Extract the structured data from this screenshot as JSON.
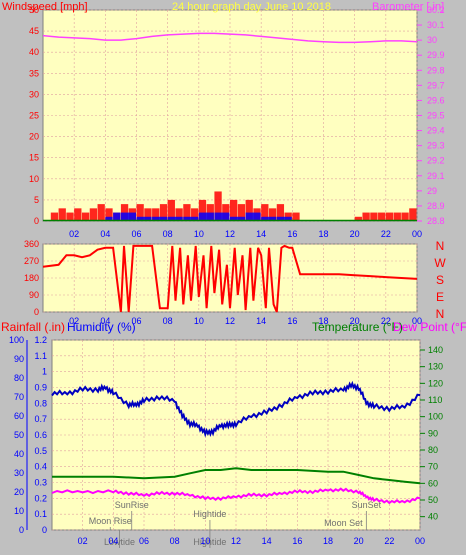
{
  "header": {
    "title": "24 hour graph day   June 10 2018",
    "left_label": "Windspeed [mph]",
    "right_label": "Barometer [.in]"
  },
  "bottom_header": {
    "rain_label": "Rainfall (.in)",
    "humidity_label": "Humidity (%)",
    "temperature_label": "Temperature (°F)",
    "dewpoint_label": "Dew Point (°F)"
  },
  "colors": {
    "background": "#c0c0c0",
    "plot_bg": "#ffffc0",
    "wind": "#ff0000",
    "wind_blue": "#0000ff",
    "wind_green": "#008000",
    "barometer": "#ff40ff",
    "direction": "#ff0000",
    "humidity": "#0000c0",
    "temperature": "#008000",
    "dewpoint": "#ff00ff",
    "axis_left_bottom": "#0000ff",
    "axis_rain": "#ff0000"
  },
  "chart_data": [
    {
      "id": "top",
      "type": "line",
      "x_ticks": [
        "02",
        "04",
        "06",
        "08",
        "10",
        "12",
        "14",
        "16",
        "18",
        "20",
        "22",
        "00"
      ],
      "left_axis": {
        "label": "Windspeed [mph]",
        "ylim": [
          0,
          50
        ],
        "ticks": [
          "0",
          "5",
          "10",
          "15",
          "20",
          "25",
          "30",
          "35",
          "40",
          "45",
          "50"
        ]
      },
      "right_axis": {
        "label": "Barometer [.in]",
        "ylim": [
          28.8,
          30.2
        ],
        "ticks": [
          "28.8",
          "28.9",
          "29",
          "29.1",
          "29.2",
          "29.3",
          "29.4",
          "29.5",
          "29.6",
          "29.7",
          "29.8",
          "29.9",
          "30",
          "30.1",
          "30.2"
        ]
      },
      "series": [
        {
          "name": "Barometer [.in]",
          "axis": "right",
          "x": [
            0,
            1,
            2,
            3,
            4,
            5,
            6,
            7,
            8,
            9,
            10,
            11,
            12,
            13,
            14,
            15,
            16,
            17,
            18,
            19,
            20,
            21,
            22,
            23,
            24
          ],
          "y": [
            30.03,
            30.02,
            30.015,
            30.01,
            30.0,
            30.0,
            30.01,
            30.025,
            30.035,
            30.04,
            30.045,
            30.045,
            30.04,
            30.035,
            30.025,
            30.015,
            30.005,
            29.995,
            29.99,
            29.985,
            29.985,
            29.99,
            29.995,
            29.995,
            29.99
          ]
        },
        {
          "name": "Wind gust",
          "axis": "left",
          "x": [
            0,
            0.5,
            1,
            1.5,
            2,
            2.5,
            3,
            3.5,
            4,
            4.5,
            5,
            5.5,
            6,
            6.5,
            7,
            7.5,
            8,
            8.5,
            9,
            9.5,
            10,
            10.5,
            11,
            11.5,
            12,
            12.5,
            13,
            13.5,
            14,
            14.5,
            15,
            15.5,
            16,
            16.5,
            17,
            17.5,
            18,
            18.5,
            19,
            19.5,
            20,
            20.5,
            21,
            21.5,
            22,
            22.5,
            23,
            23.5,
            24
          ],
          "y": [
            0,
            2,
            3,
            2,
            3,
            2,
            3,
            4,
            3,
            2,
            4,
            3,
            4,
            3,
            3,
            4,
            5,
            3,
            4,
            3,
            5,
            4,
            7,
            4,
            5,
            4,
            5,
            3,
            4,
            3,
            4,
            2,
            2,
            0,
            0,
            0,
            0,
            0,
            0,
            0,
            1,
            2,
            2,
            2,
            2,
            2,
            2,
            3,
            3
          ]
        },
        {
          "name": "Wind speed",
          "axis": "left",
          "x": [
            0,
            1,
            2,
            3,
            4,
            4.5,
            5,
            6,
            7,
            8,
            9,
            10,
            11,
            12,
            13,
            14,
            15,
            16,
            17,
            18,
            19,
            20,
            21,
            22,
            23,
            24
          ],
          "y": [
            0,
            0,
            0,
            0,
            1,
            2,
            2,
            1,
            1,
            1,
            1,
            2,
            2,
            1,
            2,
            1,
            1,
            0,
            0,
            0,
            0,
            0,
            0,
            0,
            0,
            0
          ]
        }
      ]
    },
    {
      "id": "direction",
      "type": "line",
      "x_ticks": [
        "02",
        "04",
        "06",
        "08",
        "10",
        "12",
        "14",
        "16",
        "18",
        "20",
        "22",
        "00"
      ],
      "left_axis": {
        "ylim": [
          0,
          360
        ],
        "ticks": [
          "0",
          "90",
          "180",
          "270",
          "360"
        ]
      },
      "right_axis": {
        "ticks": [
          "N",
          "W",
          "S",
          "E",
          "N"
        ]
      },
      "series": [
        {
          "name": "Wind direction",
          "x": [
            0,
            1,
            1.5,
            2,
            2.5,
            3,
            3.5,
            4,
            4.5,
            5,
            5.2,
            5.5,
            5.8,
            6,
            6.5,
            7,
            7.5,
            8,
            8.3,
            8.5,
            8.8,
            9,
            9.3,
            9.5,
            9.8,
            10,
            10.3,
            10.5,
            10.8,
            11,
            11.3,
            11.5,
            11.8,
            12,
            12.3,
            12.5,
            12.8,
            13,
            13.3,
            13.5,
            13.8,
            14,
            14.3,
            14.5,
            14.8,
            15,
            15.3,
            15.5,
            15.8,
            16,
            16.5,
            17,
            18,
            19,
            20,
            21,
            22,
            23,
            24
          ],
          "y": [
            240,
            250,
            300,
            300,
            290,
            300,
            330,
            340,
            340,
            0,
            350,
            0,
            350,
            350,
            350,
            350,
            20,
            20,
            350,
            60,
            340,
            40,
            300,
            60,
            350,
            80,
            300,
            20,
            350,
            100,
            330,
            40,
            250,
            20,
            340,
            90,
            300,
            10,
            340,
            60,
            340,
            300,
            20,
            340,
            40,
            0,
            340,
            350,
            340,
            340,
            200,
            200,
            200,
            200,
            195,
            190,
            185,
            180,
            175
          ]
        }
      ]
    },
    {
      "id": "bottom",
      "type": "line",
      "x_ticks": [
        "02",
        "04",
        "06",
        "08",
        "10",
        "12",
        "14",
        "16",
        "18",
        "20",
        "22",
        "00"
      ],
      "rain_axis": {
        "label": "Rainfall (.in)",
        "ylim": [
          0,
          1.2
        ],
        "ticks": [
          "0",
          "0.1",
          "0.2",
          "0.3",
          "0.4",
          "0.5",
          "0.6",
          "0.7",
          "0.8",
          "0.9",
          "1",
          "1.1",
          "1.2"
        ]
      },
      "humidity_axis": {
        "label": "Humidity (%)",
        "ylim": [
          0,
          100
        ],
        "ticks": [
          "0",
          "10",
          "20",
          "30",
          "40",
          "50",
          "60",
          "70",
          "80",
          "90",
          "100"
        ]
      },
      "temp_axis": {
        "label": "Temperature (°F)",
        "ylim": [
          32,
          146
        ],
        "ticks": [
          "40",
          "50",
          "60",
          "70",
          "80",
          "90",
          "100",
          "110",
          "120",
          "130",
          "140"
        ]
      },
      "annotations": [
        {
          "text": "SunRise",
          "x": 5.2
        },
        {
          "text": "Moon Rise",
          "x": 3.8
        },
        {
          "text": "Lowtide",
          "x": 4.4
        },
        {
          "text": "Hightide",
          "x": 10.3
        },
        {
          "text": "Hightide",
          "x": 10.3
        },
        {
          "text": "Moon Set",
          "x": 19.0
        },
        {
          "text": "SunSet",
          "x": 20.5
        }
      ],
      "series": [
        {
          "name": "Humidity (%)",
          "axis": "humidity",
          "x": [
            0,
            1,
            2,
            3,
            3.5,
            4,
            5,
            5.5,
            6,
            7,
            8,
            8.5,
            9,
            9.5,
            10,
            10.5,
            11,
            11.5,
            12,
            13,
            14,
            15,
            16,
            17,
            18,
            19,
            19.5,
            20,
            20.5,
            21,
            22,
            23,
            24
          ],
          "y": [
            72,
            72,
            74,
            74,
            75,
            72,
            66,
            66,
            68,
            70,
            68,
            60,
            56,
            55,
            51,
            52,
            55,
            55,
            56,
            60,
            62,
            66,
            70,
            72,
            73,
            74,
            76,
            75,
            67,
            65,
            64,
            65,
            71
          ]
        },
        {
          "name": "Temperature (°F)",
          "axis": "temp",
          "x": [
            0,
            2,
            4,
            6,
            8,
            9,
            10,
            11,
            12,
            13,
            14,
            16,
            18,
            19,
            20,
            21,
            22,
            23,
            24
          ],
          "y": [
            64,
            64,
            64,
            63,
            64,
            66,
            68,
            68,
            69,
            68,
            68,
            68,
            67,
            67,
            65,
            63,
            62,
            61,
            60
          ]
        },
        {
          "name": "Dew Point (°F)",
          "axis": "temp",
          "x": [
            0,
            2,
            4,
            5,
            6,
            7,
            8,
            9,
            10,
            11,
            12,
            13,
            14,
            15,
            16,
            17,
            18,
            19,
            20,
            20.5,
            21,
            22,
            23,
            24
          ],
          "y": [
            55,
            55,
            55,
            54,
            53,
            54,
            54,
            53,
            51,
            51,
            52,
            53,
            53,
            54,
            55,
            55,
            56,
            56,
            55,
            52,
            50,
            49,
            49,
            51
          ]
        }
      ]
    }
  ]
}
